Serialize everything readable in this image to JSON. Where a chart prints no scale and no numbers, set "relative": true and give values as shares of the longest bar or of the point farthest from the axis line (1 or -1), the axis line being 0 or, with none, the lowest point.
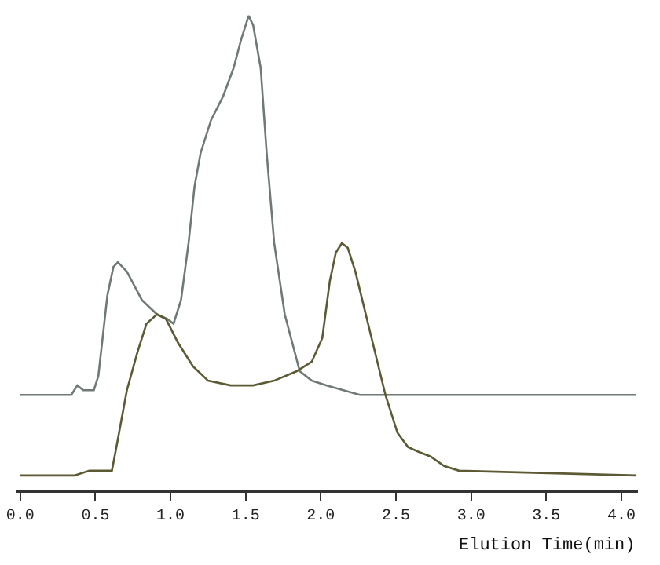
{
  "chart_data": {
    "type": "line",
    "relative": true,
    "xlabel": "Elution Time(min)",
    "xlim": [
      -0.03,
      4.11
    ],
    "xticks": [
      {
        "value": 0,
        "label": "0.0"
      },
      {
        "value": 0.5,
        "label": "0.5"
      },
      {
        "value": 1,
        "label": "1.0"
      },
      {
        "value": 1.5,
        "label": "1.5"
      },
      {
        "value": 2,
        "label": "2.0"
      },
      {
        "value": 2.5,
        "label": "2.5"
      },
      {
        "value": 3,
        "label": "3.0"
      },
      {
        "value": 3.5,
        "label": "3.5"
      },
      {
        "value": 4,
        "label": "4.0"
      }
    ],
    "marker": "none",
    "line_style": "solid",
    "series": [
      {
        "color": "#6f7a74",
        "x": [
          0,
          0.34,
          0.38,
          0.42,
          0.49,
          0.52,
          0.58,
          0.62,
          0.65,
          0.71,
          0.81,
          0.91,
          0.98,
          1.02,
          1.07,
          1.12,
          1.16,
          1.2,
          1.27,
          1.35,
          1.42,
          1.47,
          1.52,
          1.55,
          1.6,
          1.64,
          1.69,
          1.76,
          1.86,
          1.94,
          2.04,
          2.26,
          2.92,
          4.1
        ],
        "values": [
          0.2,
          0.2,
          0.22,
          0.21,
          0.21,
          0.24,
          0.41,
          0.47,
          0.48,
          0.46,
          0.4,
          0.37,
          0.36,
          0.35,
          0.4,
          0.52,
          0.64,
          0.71,
          0.78,
          0.83,
          0.89,
          0.95,
          1.0,
          0.98,
          0.89,
          0.71,
          0.52,
          0.37,
          0.25,
          0.23,
          0.22,
          0.2,
          0.2,
          0.2
        ]
      },
      {
        "color": "#5c5a34",
        "x": [
          0,
          0.36,
          0.46,
          0.61,
          0.64,
          0.71,
          0.78,
          0.84,
          0.91,
          0.97,
          1.05,
          1.15,
          1.25,
          1.4,
          1.55,
          1.69,
          1.84,
          1.94,
          2.01,
          2.06,
          2.1,
          2.14,
          2.18,
          2.23,
          2.33,
          2.43,
          2.51,
          2.58,
          2.65,
          2.73,
          2.82,
          2.92,
          4.1
        ],
        "values": [
          0.03,
          0.03,
          0.04,
          0.04,
          0.09,
          0.21,
          0.29,
          0.35,
          0.37,
          0.36,
          0.31,
          0.26,
          0.23,
          0.22,
          0.22,
          0.23,
          0.25,
          0.27,
          0.32,
          0.44,
          0.5,
          0.52,
          0.51,
          0.46,
          0.33,
          0.2,
          0.12,
          0.09,
          0.08,
          0.07,
          0.05,
          0.04,
          0.03
        ]
      }
    ]
  }
}
